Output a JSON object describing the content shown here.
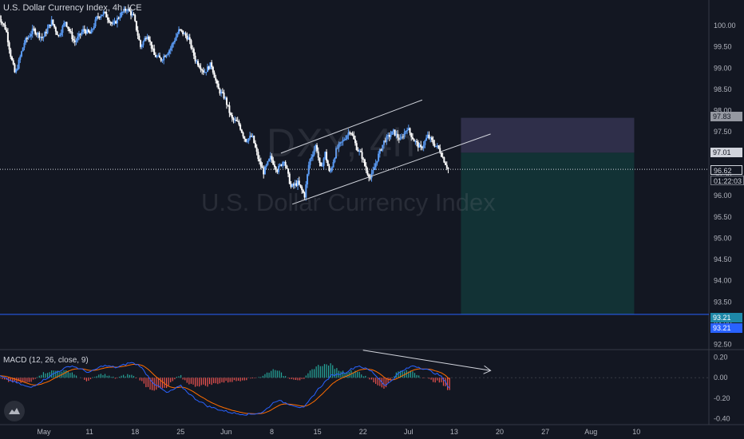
{
  "header": {
    "title": "U.S. Dollar Currency Index, 4h, ICE"
  },
  "watermark": {
    "symbol": "DXY, 4h",
    "name": "U.S. Dollar Currency Index"
  },
  "price_tags": {
    "stop": "97.83",
    "entry": "97.01",
    "last": "96.62",
    "countdown": "01:22:03",
    "target1": "93.21",
    "target2": "93.21"
  },
  "macd": {
    "label": "MACD (12, 26, close, 9)"
  },
  "colors": {
    "up": "#5b9cf6",
    "down": "#ffffff",
    "macd_line": "#2962ff",
    "signal_line": "#ff6d00",
    "hist_pos": "#26a69a",
    "hist_neg": "#ef5350",
    "stop_zone": "#2f2f4a",
    "target_zone": "#123235"
  },
  "icons": {
    "logo": "tradingview-logo-icon"
  },
  "chart_data": [
    {
      "type": "candlestick",
      "title": "U.S. Dollar Currency Index, 4h, ICE",
      "y_ticks": [
        "100.00",
        "99.50",
        "99.00",
        "98.50",
        "98.00",
        "97.50",
        "97.00",
        "96.50",
        "96.00",
        "95.50",
        "95.00",
        "94.50",
        "94.00",
        "93.50",
        "93.00",
        "92.50"
      ],
      "ylim": [
        92.4,
        100.6
      ],
      "x_ticks": [
        "May",
        "11",
        "18",
        "25",
        "Jun",
        "8",
        "15",
        "22",
        "Jul",
        "13",
        "20",
        "27",
        "Aug",
        "10"
      ],
      "x_tick_pos": [
        0,
        1,
        2,
        3,
        4,
        5,
        6,
        7,
        8,
        9,
        10,
        11,
        12,
        13
      ],
      "last_price": 96.62,
      "position": {
        "side": "short",
        "entry": 97.01,
        "stop": 97.83,
        "target": 93.21
      },
      "trendlines": [
        {
          "name": "channel_upper",
          "points": [
            [
              5.2,
              97.0
            ],
            [
              8.3,
              98.25
            ]
          ]
        },
        {
          "name": "channel_lower",
          "points": [
            [
              5.45,
              95.8
            ],
            [
              9.8,
              97.45
            ]
          ]
        }
      ],
      "path": [
        [
          -1.0,
          100.3
        ],
        [
          -0.8,
          99.9
        ],
        [
          -0.7,
          99.3
        ],
        [
          -0.6,
          98.85
        ],
        [
          -0.4,
          99.6
        ],
        [
          -0.2,
          99.9
        ],
        [
          0.0,
          99.7
        ],
        [
          0.2,
          100.1
        ],
        [
          0.35,
          99.75
        ],
        [
          0.5,
          100.1
        ],
        [
          0.7,
          99.6
        ],
        [
          0.9,
          99.9
        ],
        [
          1.05,
          99.8
        ],
        [
          1.2,
          100.2
        ],
        [
          1.35,
          100.3
        ],
        [
          1.55,
          100.0
        ],
        [
          1.7,
          100.25
        ],
        [
          1.85,
          100.4
        ],
        [
          2.0,
          100.2
        ],
        [
          2.15,
          99.5
        ],
        [
          2.3,
          99.8
        ],
        [
          2.45,
          99.3
        ],
        [
          2.6,
          99.2
        ],
        [
          2.8,
          99.45
        ],
        [
          3.0,
          99.9
        ],
        [
          3.2,
          99.7
        ],
        [
          3.35,
          99.2
        ],
        [
          3.55,
          98.9
        ],
        [
          3.7,
          99.1
        ],
        [
          3.85,
          98.5
        ],
        [
          4.0,
          98.3
        ],
        [
          4.15,
          97.8
        ],
        [
          4.3,
          97.7
        ],
        [
          4.45,
          97.3
        ],
        [
          4.6,
          97.4
        ],
        [
          4.75,
          96.8
        ],
        [
          4.85,
          96.55
        ],
        [
          5.0,
          96.9
        ],
        [
          5.15,
          96.6
        ],
        [
          5.3,
          96.85
        ],
        [
          5.45,
          96.2
        ],
        [
          5.6,
          96.3
        ],
        [
          5.75,
          96.0
        ],
        [
          5.85,
          96.8
        ],
        [
          6.0,
          97.2
        ],
        [
          6.1,
          96.6
        ],
        [
          6.2,
          97.0
        ],
        [
          6.3,
          96.5
        ],
        [
          6.45,
          97.1
        ],
        [
          6.6,
          97.3
        ],
        [
          6.75,
          97.55
        ],
        [
          6.9,
          97.1
        ],
        [
          7.0,
          96.95
        ],
        [
          7.1,
          96.6
        ],
        [
          7.2,
          96.4
        ],
        [
          7.35,
          96.9
        ],
        [
          7.5,
          97.3
        ],
        [
          7.7,
          97.5
        ],
        [
          7.85,
          97.3
        ],
        [
          8.0,
          97.6
        ],
        [
          8.15,
          97.3
        ],
        [
          8.3,
          97.1
        ],
        [
          8.45,
          97.4
        ],
        [
          8.6,
          97.2
        ],
        [
          8.7,
          97.1
        ],
        [
          8.8,
          96.85
        ],
        [
          8.9,
          96.62
        ]
      ],
      "series": [
        {
          "name": "MACD"
        },
        {
          "name": "Signal"
        },
        {
          "name": "Histogram"
        }
      ],
      "macd_y_ticks": [
        "0.20",
        "0.00",
        "-0.20",
        "-0.40"
      ],
      "macd_ylim": [
        -0.46,
        0.26
      ],
      "macd_path": [
        [
          -1.0,
          0.02
        ],
        [
          -0.6,
          -0.05
        ],
        [
          -0.3,
          -0.1
        ],
        [
          0.0,
          -0.02
        ],
        [
          0.3,
          0.06
        ],
        [
          0.6,
          0.12
        ],
        [
          1.0,
          0.05
        ],
        [
          1.3,
          0.12
        ],
        [
          1.6,
          0.1
        ],
        [
          1.9,
          0.15
        ],
        [
          2.1,
          0.12
        ],
        [
          2.4,
          -0.05
        ],
        [
          2.7,
          -0.15
        ],
        [
          3.0,
          -0.08
        ],
        [
          3.3,
          -0.2
        ],
        [
          3.6,
          -0.28
        ],
        [
          3.9,
          -0.32
        ],
        [
          4.2,
          -0.35
        ],
        [
          4.5,
          -0.36
        ],
        [
          4.8,
          -0.34
        ],
        [
          5.1,
          -0.22
        ],
        [
          5.4,
          -0.26
        ],
        [
          5.7,
          -0.3
        ],
        [
          6.0,
          -0.12
        ],
        [
          6.3,
          0.02
        ],
        [
          6.6,
          0.05
        ],
        [
          6.9,
          0.12
        ],
        [
          7.2,
          0.06
        ],
        [
          7.5,
          -0.08
        ],
        [
          7.8,
          0.05
        ],
        [
          8.1,
          0.12
        ],
        [
          8.4,
          0.08
        ],
        [
          8.7,
          0.02
        ],
        [
          8.9,
          -0.1
        ]
      ],
      "macd_arrow": [
        [
          7.0,
          0.27
        ],
        [
          9.8,
          0.07
        ]
      ]
    }
  ]
}
